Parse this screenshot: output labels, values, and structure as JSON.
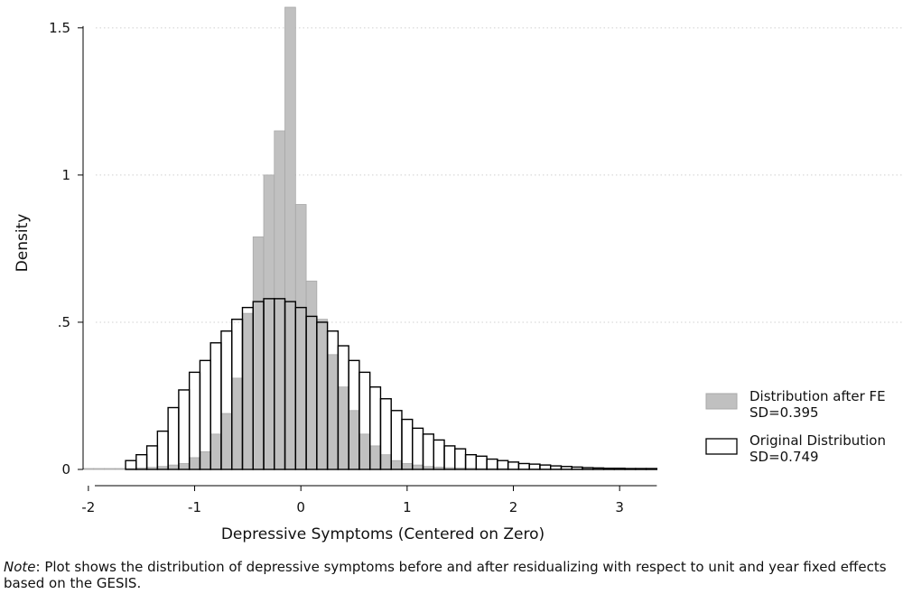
{
  "chart_data": {
    "type": "bar",
    "xlabel": "Depressive Symptoms (Centered on Zero)",
    "ylabel": "Density",
    "xlim": [
      -2.05,
      3.5
    ],
    "ylim": [
      0,
      1.57
    ],
    "xticks": [
      -2,
      -1,
      0,
      1,
      2,
      3
    ],
    "xtick_labels": [
      "-2",
      "-1",
      "0",
      "1",
      "2",
      "3"
    ],
    "yticks": [
      0,
      0.5,
      1,
      1.5
    ],
    "ytick_labels": [
      "0",
      ".5",
      "1",
      "1.5"
    ],
    "grid": true,
    "legend_position": "right",
    "bin_width": 0.1,
    "series": [
      {
        "name": "Distribution after FE",
        "sd_label": "SD=0.395",
        "fill": "#c0c0c0",
        "stroke": "#a8a8a8",
        "x": [
          -2.0,
          -1.9,
          -1.8,
          -1.7,
          -1.6,
          -1.5,
          -1.4,
          -1.3,
          -1.2,
          -1.1,
          -1.0,
          -0.9,
          -0.8,
          -0.7,
          -0.6,
          -0.5,
          -0.4,
          -0.3,
          -0.2,
          -0.1,
          0.0,
          0.1,
          0.2,
          0.3,
          0.4,
          0.5,
          0.6,
          0.7,
          0.8,
          0.9,
          1.0,
          1.1,
          1.2,
          1.3,
          1.4,
          1.5,
          1.6,
          1.7,
          1.8,
          1.9,
          2.0,
          2.1,
          2.2,
          2.3,
          2.4,
          2.5,
          2.6,
          2.7,
          2.8,
          2.9,
          3.0,
          3.1,
          3.2,
          3.3
        ],
        "values": [
          0.003,
          0.003,
          0.003,
          0.003,
          0.003,
          0.005,
          0.007,
          0.01,
          0.015,
          0.02,
          0.04,
          0.06,
          0.12,
          0.19,
          0.31,
          0.53,
          0.79,
          1.0,
          1.15,
          1.57,
          0.9,
          0.64,
          0.51,
          0.39,
          0.28,
          0.2,
          0.12,
          0.08,
          0.05,
          0.03,
          0.02,
          0.015,
          0.01,
          0.008,
          0.006,
          0.005,
          0.004,
          0.003,
          0.003,
          0.003,
          0.002,
          0.002,
          0.002,
          0.002,
          0.002,
          0.002,
          0.002,
          0.002,
          0.002,
          0.002,
          0.002,
          0.002,
          0.002,
          0.002
        ]
      },
      {
        "name": "Original Distribution",
        "sd_label": "SD=0.749",
        "fill": "none",
        "stroke": "#000000",
        "x": [
          -1.6,
          -1.5,
          -1.4,
          -1.3,
          -1.2,
          -1.1,
          -1.0,
          -0.9,
          -0.8,
          -0.7,
          -0.6,
          -0.5,
          -0.4,
          -0.3,
          -0.2,
          -0.1,
          0.0,
          0.1,
          0.2,
          0.3,
          0.4,
          0.5,
          0.6,
          0.7,
          0.8,
          0.9,
          1.0,
          1.1,
          1.2,
          1.3,
          1.4,
          1.5,
          1.6,
          1.7,
          1.8,
          1.9,
          2.0,
          2.1,
          2.2,
          2.3,
          2.4,
          2.5,
          2.6,
          2.7,
          2.8,
          2.9,
          3.0,
          3.1,
          3.2,
          3.3
        ],
        "values": [
          0.03,
          0.05,
          0.08,
          0.13,
          0.21,
          0.27,
          0.33,
          0.37,
          0.43,
          0.47,
          0.51,
          0.55,
          0.57,
          0.58,
          0.58,
          0.57,
          0.55,
          0.52,
          0.5,
          0.47,
          0.42,
          0.37,
          0.33,
          0.28,
          0.24,
          0.2,
          0.17,
          0.14,
          0.12,
          0.1,
          0.08,
          0.07,
          0.05,
          0.045,
          0.035,
          0.03,
          0.025,
          0.02,
          0.018,
          0.015,
          0.012,
          0.01,
          0.008,
          0.006,
          0.005,
          0.004,
          0.004,
          0.003,
          0.003,
          0.003
        ]
      }
    ]
  },
  "note": {
    "label": "Note",
    "text": ": Plot shows the distribution of depressive symptoms before and after residualizing with respect to unit and year fixed effects based on the GESIS."
  }
}
